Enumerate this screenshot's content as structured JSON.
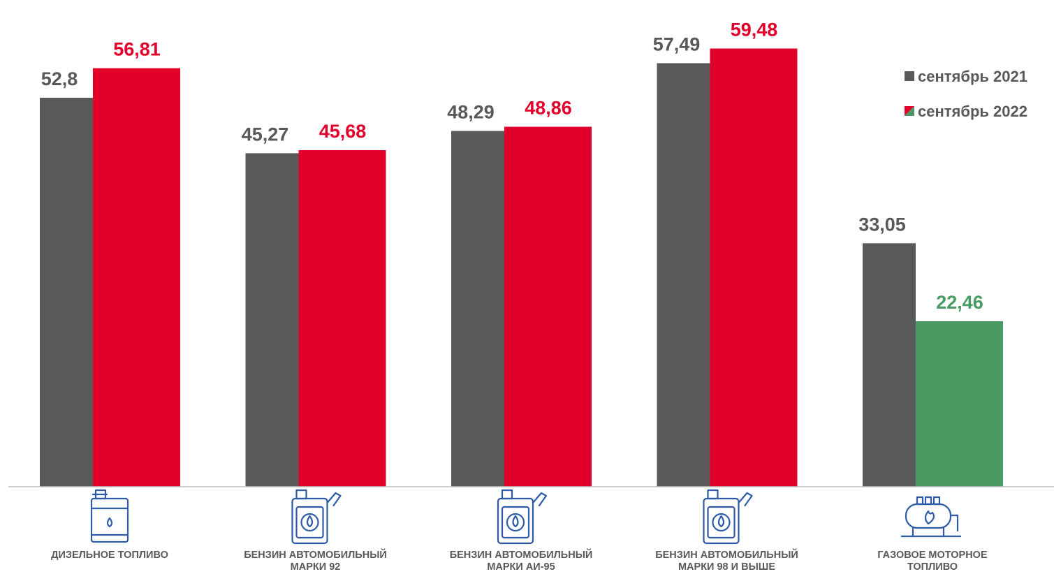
{
  "chart_data": {
    "type": "bar",
    "categories": [
      "ДИЗЕЛЬНОЕ ТОПЛИВО",
      "БЕНЗИН АВТОМОБИЛЬНЫЙ МАРКИ 92",
      "БЕНЗИН АВТОМОБИЛЬНЫЙ МАРКИ АИ-95",
      "БЕНЗИН АВТОМОБИЛЬНЫЙ МАРКИ 98 И ВЫШЕ",
      "ГАЗОВОЕ МОТОРНОЕ ТОПЛИВО"
    ],
    "category_lines": [
      [
        "ДИЗЕЛЬНОЕ ТОПЛИВО"
      ],
      [
        "БЕНЗИН АВТОМОБИЛЬНЫЙ",
        "МАРКИ 92"
      ],
      [
        "БЕНЗИН АВТОМОБИЛЬНЫЙ",
        "МАРКИ АИ-95"
      ],
      [
        "БЕНЗИН АВТОМОБИЛЬНЫЙ",
        "МАРКИ 98 И ВЫШЕ"
      ],
      [
        "ГАЗОВОЕ МОТОРНОЕ",
        "ТОПЛИВО"
      ]
    ],
    "category_icons": [
      "canister-icon",
      "jerrycan-icon",
      "jerrycan-icon",
      "jerrycan-icon",
      "gas-tank-icon"
    ],
    "series": [
      {
        "name": "сентябрь 2021",
        "values": [
          52.8,
          45.27,
          48.29,
          57.49,
          33.05
        ],
        "labels": [
          "52,8",
          "45,27",
          "48,29",
          "57,49",
          "33,05"
        ],
        "color": "#595959",
        "label_color": "#595959"
      },
      {
        "name": "сентябрь 2022",
        "values": [
          56.81,
          45.68,
          48.86,
          59.48,
          22.46
        ],
        "labels": [
          "56,81",
          "45,68",
          "48,86",
          "59,48",
          "22,46"
        ],
        "colors": [
          "#e2002a",
          "#e2002a",
          "#e2002a",
          "#e2002a",
          "#4a9a63"
        ],
        "label_colors": [
          "#e2002a",
          "#e2002a",
          "#e2002a",
          "#e2002a",
          "#4a9a63"
        ]
      }
    ],
    "ylim": [
      0,
      62
    ],
    "grid": false,
    "legend": "top-right",
    "icon_color": "#2e5aa8"
  }
}
